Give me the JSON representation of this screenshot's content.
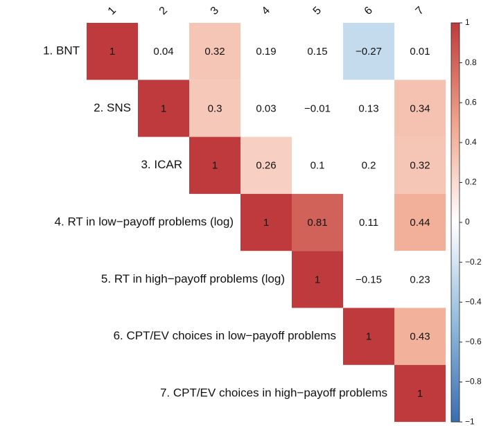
{
  "chart_data": {
    "type": "heatmap",
    "categories": [
      "1",
      "2",
      "3",
      "4",
      "5",
      "6",
      "7"
    ],
    "row_labels": [
      "1. BNT",
      "2. SNS",
      "3. ICAR",
      "4. RT in low−payoff problems (log)",
      "5. RT in high−payoff problems (log)",
      "6. CPT/EV choices in low−payoff problems",
      "7. CPT/EV choices in high−payoff problems"
    ],
    "values": [
      [
        1,
        0.04,
        0.32,
        0.19,
        0.15,
        -0.27,
        0.01
      ],
      [
        null,
        1,
        0.3,
        0.03,
        -0.01,
        0.13,
        0.34
      ],
      [
        null,
        null,
        1,
        0.26,
        0.1,
        0.2,
        0.32
      ],
      [
        null,
        null,
        null,
        1,
        0.81,
        0.11,
        0.44
      ],
      [
        null,
        null,
        null,
        null,
        1,
        -0.15,
        0.23
      ],
      [
        null,
        null,
        null,
        null,
        null,
        1,
        0.43
      ],
      [
        null,
        null,
        null,
        null,
        null,
        null,
        1
      ]
    ],
    "value_labels": [
      [
        "1",
        "0.04",
        "0.32",
        "0.19",
        "0.15",
        "−0.27",
        "0.01"
      ],
      [
        null,
        "1",
        "0.3",
        "0.03",
        "−0.01",
        "0.13",
        "0.34"
      ],
      [
        null,
        null,
        "1",
        "0.26",
        "0.1",
        "0.2",
        "0.32"
      ],
      [
        null,
        null,
        null,
        "1",
        "0.81",
        "0.11",
        "0.44"
      ],
      [
        null,
        null,
        null,
        null,
        "1",
        "−0.15",
        "0.23"
      ],
      [
        null,
        null,
        null,
        null,
        null,
        "1",
        "0.43"
      ],
      [
        null,
        null,
        null,
        null,
        null,
        null,
        "1"
      ]
    ],
    "shaded": [
      [
        true,
        false,
        true,
        false,
        false,
        true,
        false
      ],
      [
        null,
        true,
        true,
        false,
        false,
        false,
        true
      ],
      [
        null,
        null,
        true,
        true,
        false,
        false,
        true
      ],
      [
        null,
        null,
        null,
        true,
        true,
        false,
        true
      ],
      [
        null,
        null,
        null,
        null,
        true,
        false,
        false
      ],
      [
        null,
        null,
        null,
        null,
        null,
        true,
        true
      ],
      [
        null,
        null,
        null,
        null,
        null,
        null,
        true
      ]
    ],
    "colorscale": [
      [
        -1,
        "#3b6eaf"
      ],
      [
        -0.5,
        "#92bbdd"
      ],
      [
        0,
        "#ffffff"
      ],
      [
        0.5,
        "#f0a48b"
      ],
      [
        1,
        "#be3a3c"
      ]
    ],
    "clim": [
      -1,
      1
    ],
    "cticks": [
      1,
      0.8,
      0.6,
      0.4,
      0.2,
      0,
      {
        "value": -0.2,
        "label": "−0.2"
      },
      {
        "value": -0.4,
        "label": "−0.4"
      },
      {
        "value": -0.6,
        "label": "−0.6"
      },
      {
        "value": -0.8,
        "label": "−0.8"
      },
      {
        "value": -1,
        "label": "−1"
      }
    ]
  }
}
